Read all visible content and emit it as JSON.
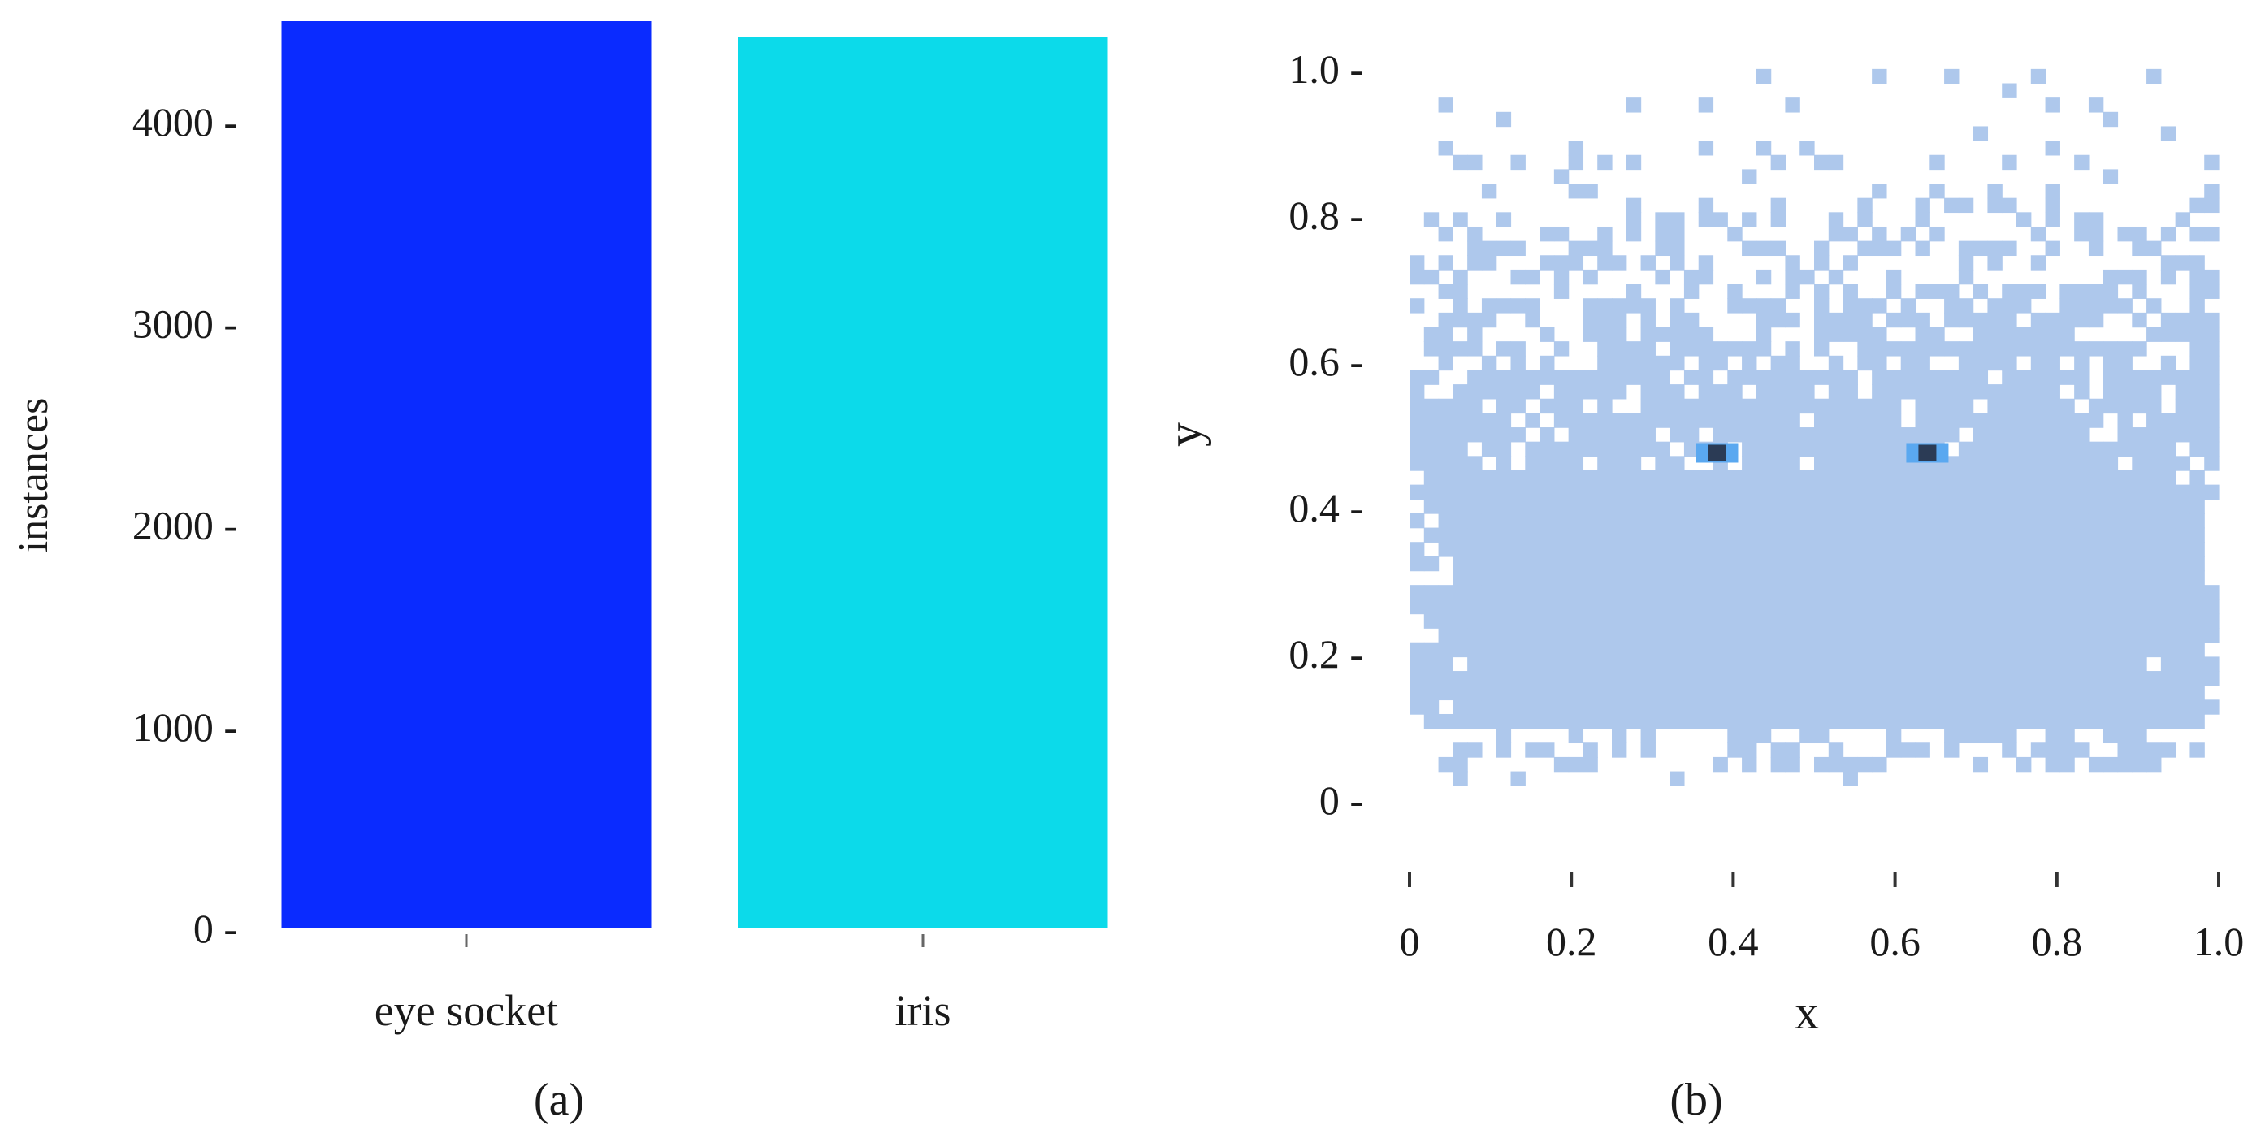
{
  "panels": {
    "a": {
      "label": "(a)"
    },
    "b": {
      "label": "(b)"
    }
  },
  "chart_data": [
    {
      "type": "bar",
      "categories": [
        "eye socket",
        "iris"
      ],
      "values": [
        4500,
        4420
      ],
      "colors": [
        "#0A2BFF",
        "#0CDAEA"
      ],
      "ylabel": "instances",
      "xlabel": "",
      "ylim": [
        0,
        4500
      ],
      "yticks": [
        0,
        1000,
        2000,
        3000,
        4000
      ],
      "ytick_labels": [
        "0 -",
        "1000 -",
        "2000 -",
        "3000 -",
        "4000 -"
      ],
      "grid": false
    },
    {
      "type": "heatmap",
      "xlabel": "x",
      "ylabel": "y",
      "xlim": [
        0,
        1
      ],
      "ylim": [
        -0.08,
        1.05
      ],
      "xticks": [
        0,
        0.2,
        0.4,
        0.6,
        0.8,
        1.0
      ],
      "xtick_labels": [
        "0",
        "0.2",
        "0.4",
        "0.6",
        "0.8",
        "1.0"
      ],
      "yticks": [
        0,
        0.2,
        0.4,
        0.6,
        0.8,
        1.0
      ],
      "ytick_labels": [
        "0 -",
        "0.2 -",
        "0.4 -",
        "0.6 -",
        "0.8 -",
        "1.0 -"
      ],
      "bins": 56,
      "cell_color": "#AEC8EC",
      "hotspots": [
        {
          "x": 0.38,
          "y": 0.475,
          "color": "#2B3B55"
        },
        {
          "x": 0.64,
          "y": 0.475,
          "color": "#2B3B55"
        }
      ],
      "grid": false
    }
  ]
}
